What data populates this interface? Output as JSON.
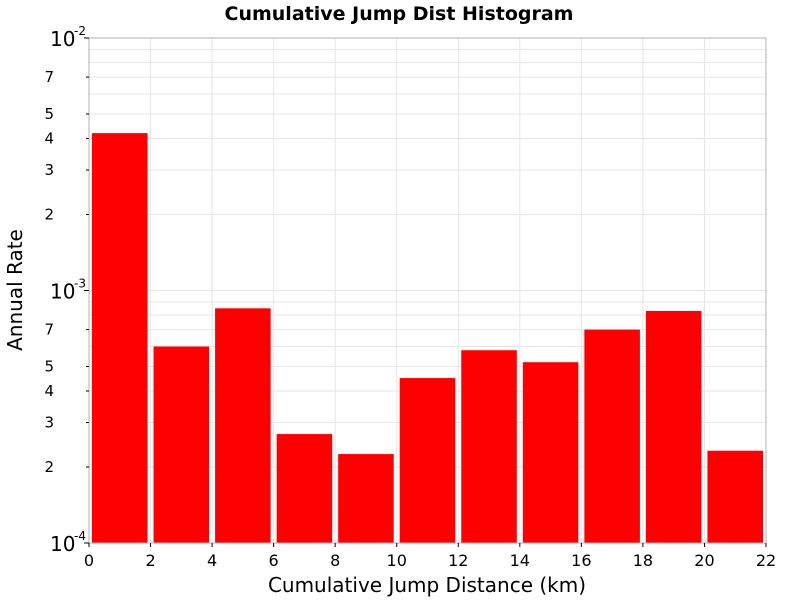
{
  "chart_data": {
    "type": "bar",
    "title": "Cumulative Jump Dist Histogram",
    "xlabel": "Cumulative Jump Distance (km)",
    "ylabel": "Annual Rate",
    "xlim": [
      0,
      22
    ],
    "ylim": [
      0.0001,
      0.01
    ],
    "yscale": "log",
    "grid": true,
    "bar_color": "#ff0000",
    "x_ticks": [
      "0",
      "2",
      "4",
      "6",
      "8",
      "10",
      "12",
      "14",
      "16",
      "18",
      "20",
      "22"
    ],
    "y_major_ticks": [
      {
        "value": 0.0001,
        "base": "10",
        "exp": "-4"
      },
      {
        "value": 0.001,
        "base": "10",
        "exp": "-3"
      },
      {
        "value": 0.01,
        "base": "10",
        "exp": "-2"
      }
    ],
    "y_minor_labels": [
      {
        "value": 0.0002,
        "label": "2"
      },
      {
        "value": 0.0003,
        "label": "3"
      },
      {
        "value": 0.0004,
        "label": "4"
      },
      {
        "value": 0.0005,
        "label": "5"
      },
      {
        "value": 0.0007,
        "label": "7"
      },
      {
        "value": 0.002,
        "label": "2"
      },
      {
        "value": 0.003,
        "label": "3"
      },
      {
        "value": 0.004,
        "label": "4"
      },
      {
        "value": 0.005,
        "label": "5"
      },
      {
        "value": 0.007,
        "label": "7"
      }
    ],
    "bars": [
      {
        "x_start": 0,
        "x_end": 2,
        "value": 0.0042
      },
      {
        "x_start": 2,
        "x_end": 4,
        "value": 0.0006
      },
      {
        "x_start": 4,
        "x_end": 6,
        "value": 0.00085
      },
      {
        "x_start": 6,
        "x_end": 8,
        "value": 0.00027
      },
      {
        "x_start": 8,
        "x_end": 10,
        "value": 0.000225
      },
      {
        "x_start": 10,
        "x_end": 12,
        "value": 0.00045
      },
      {
        "x_start": 12,
        "x_end": 14,
        "value": 0.00058
      },
      {
        "x_start": 14,
        "x_end": 16,
        "value": 0.00052
      },
      {
        "x_start": 16,
        "x_end": 18,
        "value": 0.0007
      },
      {
        "x_start": 18,
        "x_end": 20,
        "value": 0.00083
      },
      {
        "x_start": 20,
        "x_end": 22,
        "value": 0.000232
      }
    ]
  }
}
